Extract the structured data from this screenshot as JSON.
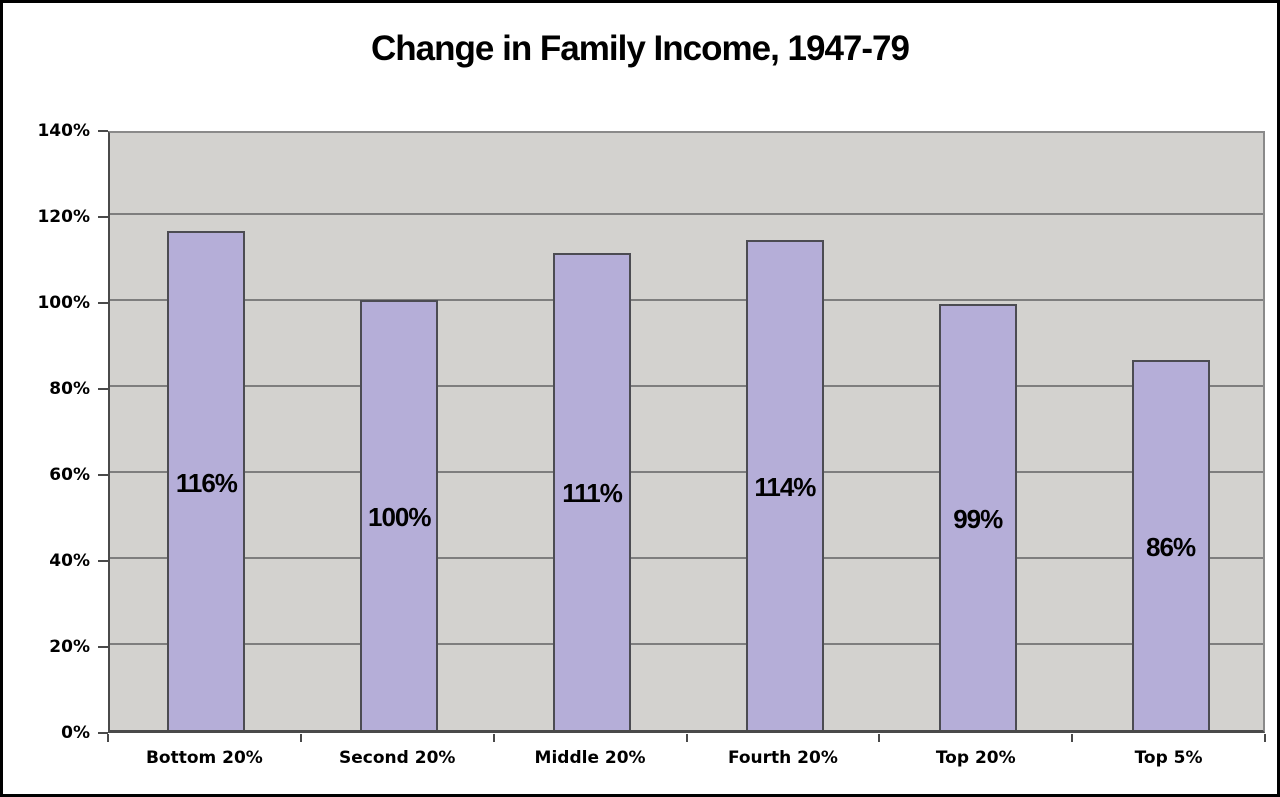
{
  "chart_data": {
    "type": "bar",
    "title": "Change in Family Income, 1947-79",
    "categories": [
      "Bottom 20%",
      "Second 20%",
      "Middle 20%",
      "Fourth 20%",
      "Top 20%",
      "Top 5%"
    ],
    "values": [
      116,
      100,
      111,
      114,
      99,
      86
    ],
    "bar_labels": [
      "116%",
      "100%",
      "111%",
      "114%",
      "99%",
      "86%"
    ],
    "xlabel": "",
    "ylabel": "",
    "ylim": [
      0,
      140
    ],
    "ytick_interval": 20,
    "ytick_labels": [
      "0%",
      "20%",
      "40%",
      "60%",
      "80%",
      "100%",
      "120%",
      "140%"
    ],
    "grid": true,
    "legend": false,
    "legend_position": "none",
    "colors": {
      "bar_fill": "#b5aed8",
      "bar_border": "#4c4c52",
      "plot_background": "#d3d2cf",
      "gridline": "#7e7e7e",
      "axis_tick": "#4a4a4a",
      "text": "#000000",
      "figure_background": "#ffffff",
      "figure_border": "#000000"
    }
  }
}
